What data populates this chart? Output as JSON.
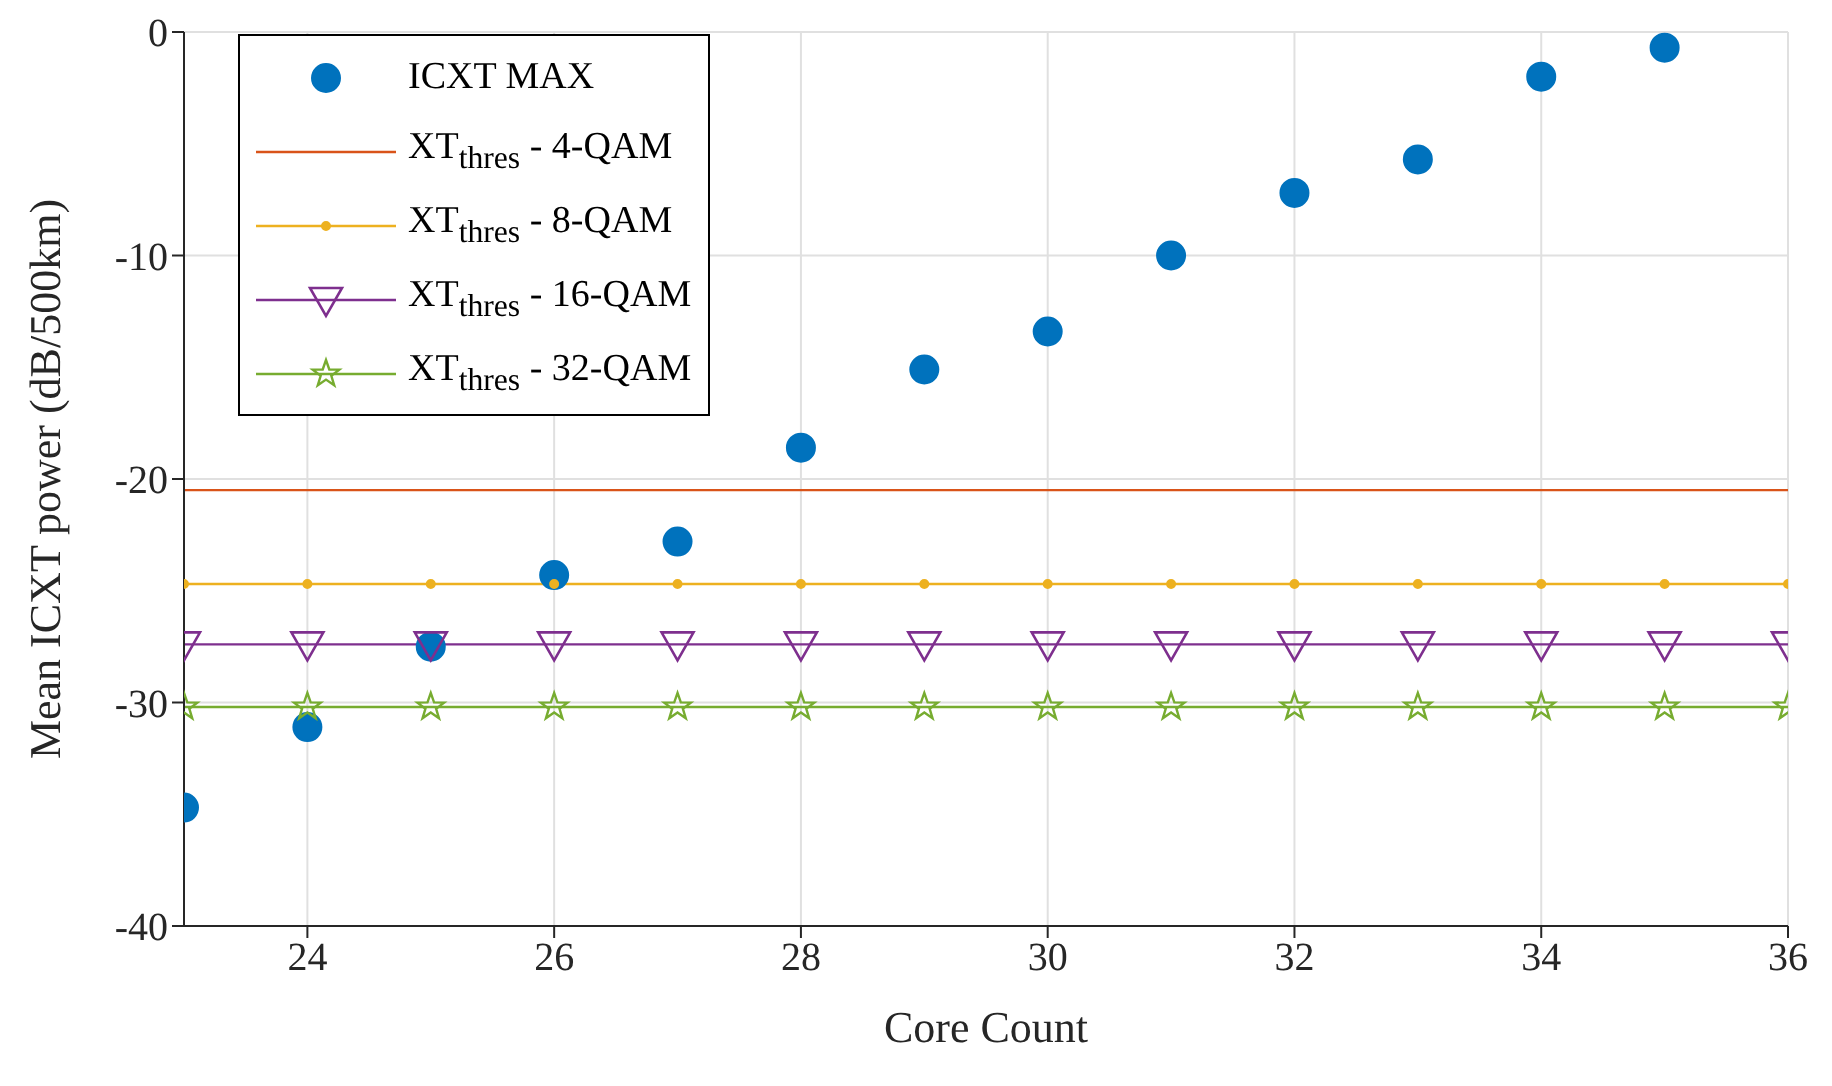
{
  "chart_data": {
    "type": "line",
    "xlabel": "Core Count",
    "ylabel": "Mean ICXT power (dB/500km)",
    "x": [
      23,
      24,
      25,
      26,
      27,
      28,
      29,
      30,
      31,
      32,
      33,
      34,
      35,
      36
    ],
    "xlim": [
      23,
      36
    ],
    "xticks": [
      24,
      26,
      28,
      30,
      32,
      34,
      36
    ],
    "ylim": [
      -40,
      0
    ],
    "yticks": [
      -40,
      -30,
      -20,
      -10,
      0
    ],
    "grid": true,
    "legend": "top left",
    "series": [
      {
        "name": "ICXT MAX",
        "type": "scatter",
        "marker": "circle",
        "color": "#0072bd",
        "x": [
          23,
          24,
          25,
          26,
          27,
          28,
          29,
          30,
          31,
          32,
          33,
          34,
          35
        ],
        "values": [
          -34.7,
          -31.1,
          -27.5,
          -24.3,
          -22.8,
          -18.6,
          -15.1,
          -13.4,
          -10.0,
          -7.2,
          -5.7,
          -2.0,
          -0.7
        ]
      },
      {
        "name": "XT$_{thres}$ - 4-QAM",
        "marker": "none",
        "color": "#d95319",
        "values": [
          -20.5,
          -20.5,
          -20.5,
          -20.5,
          -20.5,
          -20.5,
          -20.5,
          -20.5,
          -20.5,
          -20.5,
          -20.5,
          -20.5,
          -20.5,
          -20.5
        ]
      },
      {
        "name": "XT$_{thres}$ - 8-QAM",
        "marker": "circle",
        "color": "#edb120",
        "values": [
          -24.7,
          -24.7,
          -24.7,
          -24.7,
          -24.7,
          -24.7,
          -24.7,
          -24.7,
          -24.7,
          -24.7,
          -24.7,
          -24.7,
          -24.7,
          -24.7
        ]
      },
      {
        "name": "XT$_{thres}$ - 16-QAM",
        "marker": "triangle",
        "color": "#7e2f8e",
        "values": [
          -27.4,
          -27.4,
          -27.4,
          -27.4,
          -27.4,
          -27.4,
          -27.4,
          -27.4,
          -27.4,
          -27.4,
          -27.4,
          -27.4,
          -27.4,
          -27.4
        ]
      },
      {
        "name": "XT$_{thres}$ - 32-QAM",
        "marker": "star",
        "color": "#77ac30",
        "values": [
          -30.2,
          -30.2,
          -30.2,
          -30.2,
          -30.2,
          -30.2,
          -30.2,
          -30.2,
          -30.2,
          -30.2,
          -30.2,
          -30.2,
          -30.2,
          -30.2
        ]
      }
    ]
  }
}
